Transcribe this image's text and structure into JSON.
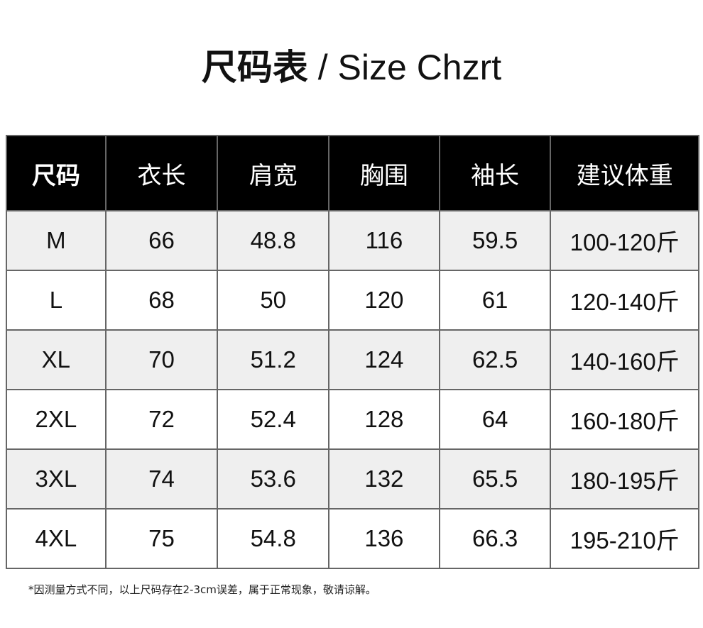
{
  "title": {
    "cn": "尺码表",
    "sep": " / ",
    "en": "Size Chzrt"
  },
  "table": {
    "headers": [
      "尺码",
      "衣长",
      "肩宽",
      "胸围",
      "袖长",
      "建议体重"
    ],
    "rows": [
      [
        "M",
        "66",
        "48.8",
        "116",
        "59.5",
        "100-120斤"
      ],
      [
        "L",
        "68",
        "50",
        "120",
        "61",
        "120-140斤"
      ],
      [
        "XL",
        "70",
        "51.2",
        "124",
        "62.5",
        "140-160斤"
      ],
      [
        "2XL",
        "72",
        "52.4",
        "128",
        "64",
        "160-180斤"
      ],
      [
        "3XL",
        "74",
        "53.6",
        "132",
        "65.5",
        "180-195斤"
      ],
      [
        "4XL",
        "75",
        "54.8",
        "136",
        "66.3",
        "195-210斤"
      ]
    ]
  },
  "note": "*因测量方式不同，以上尺码存在2-3cm误差，属于正常现象，敬请谅解。"
}
